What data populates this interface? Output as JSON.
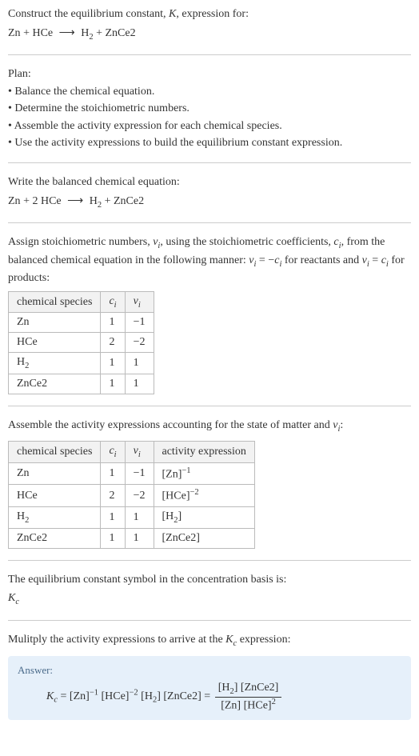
{
  "intro": {
    "line1_a": "Construct the equilibrium constant, ",
    "K": "K",
    "line1_b": ", expression for:",
    "eq_lhs_a": "Zn",
    "plus": " + ",
    "eq_lhs_b": "HCe",
    "arrow": "⟶",
    "eq_rhs_a": "H",
    "eq_rhs_a_sub": "2",
    "eq_rhs_b": "ZnCe2"
  },
  "plan": {
    "title": "Plan:",
    "b1": "• Balance the chemical equation.",
    "b2": "• Determine the stoichiometric numbers.",
    "b3": "• Assemble the activity expression for each chemical species.",
    "b4": "• Use the activity expressions to build the equilibrium constant expression."
  },
  "balanced": {
    "title": "Write the balanced chemical equation:",
    "lhs_a": "Zn",
    "plus": " + ",
    "coef2": "2 ",
    "lhs_b": "HCe",
    "arrow": "⟶",
    "rhs_a": "H",
    "rhs_a_sub": "2",
    "rhs_b": "ZnCe2"
  },
  "assign": {
    "p1": "Assign stoichiometric numbers, ",
    "nu": "ν",
    "sub_i": "i",
    "p2": ", using the stoichiometric coefficients, ",
    "c": "c",
    "p3": ", from the balanced chemical equation in the following manner: ",
    "eq1a": " = −",
    "p4": " for reactants and ",
    "eq2a": " = ",
    "p5": " for products:"
  },
  "table1": {
    "h1": "chemical species",
    "h2": "c",
    "h2_sub": "i",
    "h3": "ν",
    "h3_sub": "i",
    "rows": [
      {
        "sp": "Zn",
        "c": "1",
        "v": "−1"
      },
      {
        "sp": "HCe",
        "c": "2",
        "v": "−2"
      },
      {
        "sp": "H",
        "sp_sub": "2",
        "c": "1",
        "v": "1"
      },
      {
        "sp": "ZnCe2",
        "c": "1",
        "v": "1"
      }
    ]
  },
  "assemble": {
    "p1": "Assemble the activity expressions accounting for the state of matter and ",
    "nu": "ν",
    "sub_i": "i",
    "colon": ":"
  },
  "table2": {
    "h1": "chemical species",
    "h2": "c",
    "h2_sub": "i",
    "h3": "ν",
    "h3_sub": "i",
    "h4": "activity expression",
    "rows": [
      {
        "sp": "Zn",
        "c": "1",
        "v": "−1",
        "act_base": "[Zn]",
        "act_sup": "−1"
      },
      {
        "sp": "HCe",
        "c": "2",
        "v": "−2",
        "act_base": "[HCe]",
        "act_sup": "−2"
      },
      {
        "sp": "H",
        "sp_sub": "2",
        "c": "1",
        "v": "1",
        "act_base": "[H",
        "act_mid_sub": "2",
        "act_close": "]"
      },
      {
        "sp": "ZnCe2",
        "c": "1",
        "v": "1",
        "act_base": "[ZnCe2]"
      }
    ]
  },
  "basis": {
    "line1": "The equilibrium constant symbol in the concentration basis is:",
    "K": "K",
    "K_sub": "c"
  },
  "multiply": {
    "p1": "Mulitply the activity expressions to arrive at the ",
    "K": "K",
    "K_sub": "c",
    "p2": " expression:"
  },
  "answer": {
    "label": "Answer:",
    "Kc_K": "K",
    "Kc_sub": "c",
    "eq": " = ",
    "t1": "[Zn]",
    "t1_sup": "−1",
    "sp": " ",
    "t2": "[HCe]",
    "t2_sup": "−2",
    "t3": "[H",
    "t3_sub": "2",
    "t3_close": "]",
    "t4": "[ZnCe2]",
    "eq2": " = ",
    "num_a": "[H",
    "num_a_sub": "2",
    "num_a_close": "] ",
    "num_b": "[ZnCe2]",
    "den_a": "[Zn] ",
    "den_b": "[HCe]",
    "den_b_sup": "2"
  }
}
